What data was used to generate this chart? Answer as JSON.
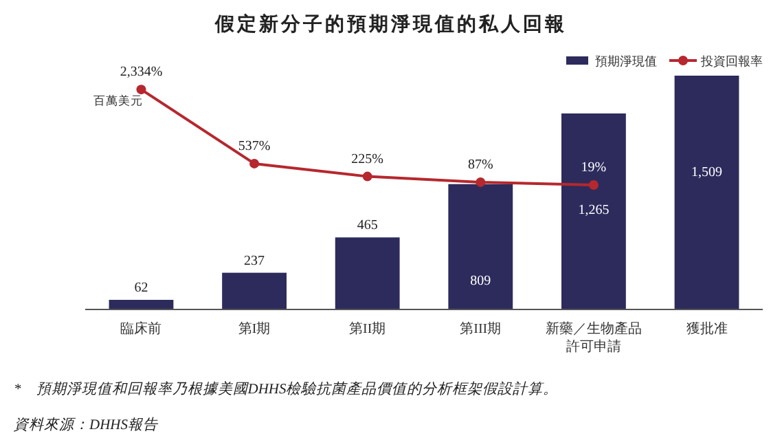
{
  "chart_data": {
    "type": "bar",
    "title": "假定新分子的預期淨現值的私人回報",
    "categories": [
      "臨床前",
      "第I期",
      "第II期",
      "第III期",
      "新藥／生物產品許可申請",
      "獲批准"
    ],
    "ylim": [
      0,
      1509
    ],
    "y2lim": [
      -3000,
      2670
    ],
    "legend": "top right",
    "series": [
      {
        "name": "預期淨現值",
        "color": "#2d2b5c",
        "values": [
          62,
          237,
          465,
          809,
          1265,
          1509
        ],
        "value_labels": [
          "62",
          "237",
          "465",
          "809",
          "1,265",
          "1,509"
        ]
      },
      {
        "name": "投資回報率",
        "type": "line",
        "axis": "y2",
        "color": "#b5282e",
        "marker": "circle",
        "values": [
          2334,
          537,
          225,
          87,
          19,
          null
        ],
        "value_labels": [
          "2,334%",
          "537%",
          "225%",
          "87%",
          "19%",
          null
        ]
      }
    ],
    "annotations": [
      "百萬美元",
      "*　預期淨現值和回報率乃根據美國DHHS檢驗抗菌產品價值的分析框架假設計算。",
      "資料來源：DHHS報告"
    ]
  }
}
